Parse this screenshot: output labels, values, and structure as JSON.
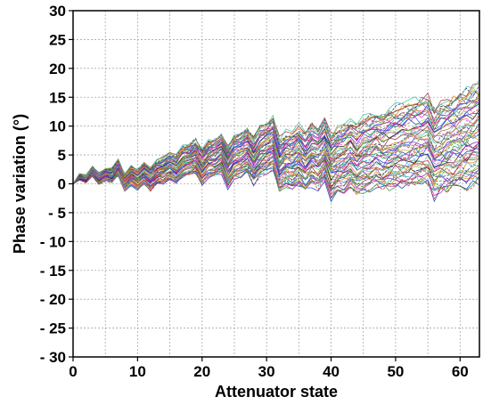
{
  "chart_data": {
    "type": "line",
    "title": "",
    "xlabel": "Attenuator state",
    "ylabel": "Phase variation (°)",
    "xlim": [
      0,
      63
    ],
    "ylim": [
      -30,
      30
    ],
    "x_ticks": [
      0,
      10,
      20,
      30,
      40,
      50,
      60
    ],
    "x_tick_labels": [
      "0",
      "10",
      "20",
      "30",
      "40",
      "50",
      "60"
    ],
    "y_ticks": [
      30,
      25,
      20,
      15,
      10,
      5,
      0,
      -5,
      -10,
      -15,
      -20,
      -25,
      -30
    ],
    "y_tick_labels": [
      "30",
      "25",
      "20",
      "15",
      "10",
      "5",
      "0",
      "- 5",
      "- 10",
      "- 15",
      "- 20",
      "- 25",
      "- 30"
    ],
    "grid": true,
    "legend": "none",
    "series_count": 64,
    "x": [
      0,
      1,
      2,
      3,
      4,
      5,
      6,
      7,
      8,
      9,
      10,
      11,
      12,
      13,
      14,
      15,
      16,
      17,
      18,
      19,
      20,
      21,
      22,
      23,
      24,
      25,
      26,
      27,
      28,
      29,
      30,
      31,
      32,
      33,
      34,
      35,
      36,
      37,
      38,
      39,
      40,
      41,
      42,
      43,
      44,
      45,
      46,
      47,
      48,
      49,
      50,
      51,
      52,
      53,
      54,
      55,
      56,
      57,
      58,
      59,
      60,
      61,
      62,
      63
    ],
    "mean_trend": [
      0,
      1.2,
      0.8,
      2.2,
      0.9,
      1.6,
      1.5,
      2.8,
      0.3,
      1.5,
      0.8,
      1.8,
      0.8,
      2.0,
      2.3,
      3.0,
      2.6,
      3.8,
      4.2,
      4.8,
      3.0,
      4.3,
      4.5,
      5.3,
      2.8,
      4.6,
      5.0,
      5.8,
      4.2,
      5.6,
      6.3,
      7.0,
      3.2,
      4.2,
      4.0,
      5.0,
      3.8,
      5.2,
      4.6,
      5.8,
      3.0,
      3.9,
      4.2,
      5.0,
      4.2,
      5.0,
      5.5,
      6.0,
      5.5,
      6.0,
      6.3,
      6.6,
      6.8,
      7.1,
      7.4,
      7.7,
      5.5,
      6.2,
      6.6,
      7.0,
      7.4,
      7.8,
      8.3,
      8.6
    ],
    "spread_base": 0.4,
    "spread_slope": 0.13,
    "series_colors": [
      "#1f3fbf",
      "#d42020",
      "#20a040",
      "#d020c0",
      "#20b8c8",
      "#c8a020",
      "#7020b0",
      "#208020",
      "#e06080",
      "#3070e0",
      "#606060",
      "#80c040",
      "#e08020",
      "#203080",
      "#a03030",
      "#40c0a0",
      "#c060e0",
      "#808020",
      "#f06060",
      "#60a0f0",
      "#202020",
      "#a0e060",
      "#ff40a0",
      "#4040ff"
    ]
  }
}
